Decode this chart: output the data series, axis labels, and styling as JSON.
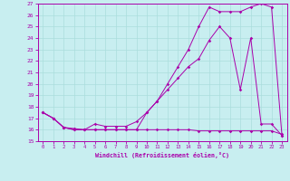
{
  "xlabel": "Windchill (Refroidissement éolien,°C)",
  "bg_color": "#c8eef0",
  "line_color": "#aa00aa",
  "grid_color": "#aadddd",
  "xlim": [
    -0.5,
    23.5
  ],
  "ylim": [
    15,
    27
  ],
  "xticks": [
    0,
    1,
    2,
    3,
    4,
    5,
    6,
    7,
    8,
    9,
    10,
    11,
    12,
    13,
    14,
    15,
    16,
    17,
    18,
    19,
    20,
    21,
    22,
    23
  ],
  "yticks": [
    15,
    16,
    17,
    18,
    19,
    20,
    21,
    22,
    23,
    24,
    25,
    26,
    27
  ],
  "series1_x": [
    0,
    1,
    2,
    3,
    4,
    5,
    6,
    7,
    8,
    9,
    10,
    11,
    12,
    13,
    14,
    15,
    16,
    17,
    18,
    19,
    20,
    21,
    22,
    23
  ],
  "series1_y": [
    17.5,
    17.0,
    16.2,
    16.0,
    16.0,
    16.0,
    16.0,
    16.0,
    16.0,
    16.0,
    16.0,
    16.0,
    16.0,
    16.0,
    16.0,
    15.9,
    15.9,
    15.9,
    15.9,
    15.9,
    15.9,
    15.9,
    15.9,
    15.6
  ],
  "series2_x": [
    0,
    1,
    2,
    3,
    4,
    5,
    6,
    7,
    8,
    9,
    10,
    11,
    12,
    13,
    14,
    15,
    16,
    17,
    18,
    19,
    20,
    21,
    22,
    23
  ],
  "series2_y": [
    17.5,
    17.0,
    16.2,
    16.1,
    16.0,
    16.0,
    16.0,
    16.0,
    16.0,
    16.0,
    17.5,
    18.5,
    20.0,
    21.5,
    23.0,
    25.0,
    26.7,
    26.3,
    26.3,
    26.3,
    26.7,
    27.0,
    26.7,
    15.5
  ],
  "series3_x": [
    0,
    1,
    2,
    3,
    4,
    5,
    6,
    7,
    8,
    9,
    10,
    11,
    12,
    13,
    14,
    15,
    16,
    17,
    18,
    19,
    20,
    21,
    22,
    23
  ],
  "series3_y": [
    17.5,
    17.0,
    16.2,
    16.0,
    16.0,
    16.5,
    16.3,
    16.3,
    16.3,
    16.7,
    17.5,
    18.5,
    19.5,
    20.5,
    21.5,
    22.2,
    23.8,
    25.0,
    24.0,
    19.5,
    24.0,
    16.5,
    16.5,
    15.5
  ]
}
